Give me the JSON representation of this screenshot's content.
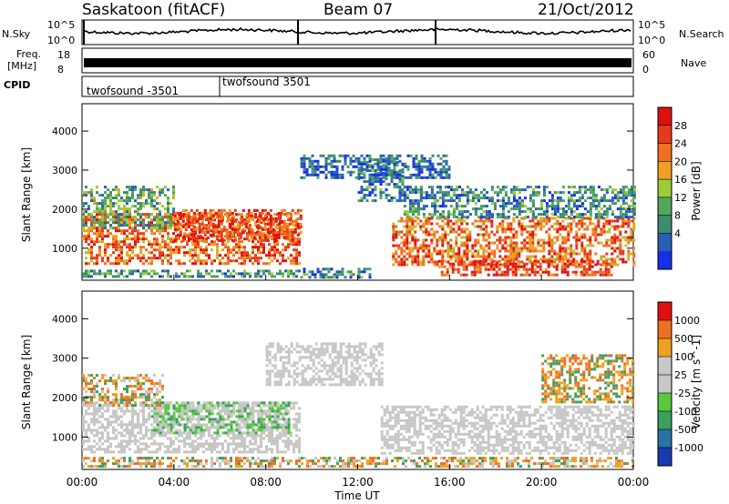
{
  "header": {
    "station": "Saskatoon (fitACF)",
    "beam": "Beam 07",
    "date": "21/Oct/2012"
  },
  "top_panels": {
    "nsky_label": "N.Sky",
    "nsky_ticks": [
      "10^5",
      "10^0"
    ],
    "nsearch_label": "N.Search",
    "nsearch_ticks": [
      "10^5",
      "10^0"
    ],
    "freq_label": "Freq.",
    "freq_unit": "[MHz]",
    "freq_ticks": [
      "18",
      "8"
    ],
    "nave_label": "Nave",
    "nave_ticks": [
      "60",
      "0"
    ],
    "cpid_label": "CPID",
    "cpid_entries": [
      {
        "text": "twofsound -3501",
        "from_hour": 0
      },
      {
        "text": "twofsound 3501",
        "from_hour": 6
      }
    ]
  },
  "chart_data": [
    {
      "type": "heatmap",
      "title": "",
      "xlabel": "Time UT",
      "ylabel": "Slant Range [km]",
      "xlim": [
        0,
        24
      ],
      "ylim": [
        180,
        4700
      ],
      "xticks": [
        "00:00",
        "04:00",
        "08:00",
        "12:00",
        "16:00",
        "20:00",
        "00:00"
      ],
      "yticks": [
        1000,
        2000,
        3000,
        4000
      ],
      "colorbar": {
        "label": "Power [dB]",
        "ticks": [
          4,
          8,
          12,
          16,
          20,
          24,
          28
        ],
        "colors": [
          "#1530e8",
          "#2860b8",
          "#3c8c6e",
          "#52a85a",
          "#9ccc38",
          "#f0a020",
          "#f07020",
          "#e83a1a",
          "#e01010"
        ]
      },
      "regions": [
        {
          "t0": 0.0,
          "t1": 9.5,
          "r0": 600,
          "r1": 1900,
          "level": 24
        },
        {
          "t0": 0.0,
          "t1": 4.0,
          "r0": 1500,
          "r1": 2600,
          "level": 12
        },
        {
          "t0": 4.0,
          "t1": 9.5,
          "r0": 1200,
          "r1": 2000,
          "level": 26
        },
        {
          "t0": 0.0,
          "t1": 9.5,
          "r0": 250,
          "r1": 450,
          "level": 10
        },
        {
          "t0": 9.5,
          "t1": 12.5,
          "r0": 250,
          "r1": 500,
          "level": 8
        },
        {
          "t0": 12.0,
          "t1": 14.0,
          "r0": 2200,
          "r1": 3300,
          "level": 8
        },
        {
          "t0": 13.5,
          "t1": 24.0,
          "r0": 600,
          "r1": 1800,
          "level": 24
        },
        {
          "t0": 15.5,
          "t1": 23.0,
          "r0": 350,
          "r1": 700,
          "level": 27
        },
        {
          "t0": 14.0,
          "t1": 24.0,
          "r0": 1800,
          "r1": 2600,
          "level": 9
        },
        {
          "t0": 9.5,
          "t1": 16.0,
          "r0": 2800,
          "r1": 3400,
          "level": 6
        }
      ]
    },
    {
      "type": "heatmap",
      "title": "",
      "xlabel": "Time UT",
      "ylabel": "Slant Range [km]",
      "xlim": [
        0,
        24
      ],
      "ylim": [
        180,
        4700
      ],
      "xticks": [
        "00:00",
        "04:00",
        "08:00",
        "12:00",
        "16:00",
        "20:00",
        "00:00"
      ],
      "yticks": [
        1000,
        2000,
        3000,
        4000
      ],
      "colorbar": {
        "label": "Velocity [m s^-1]",
        "ticks": [
          "1000",
          "500",
          "100",
          "25",
          "-25",
          "-100",
          "-500",
          "-1000"
        ],
        "colors": [
          "#1a3ab0",
          "#2a72a8",
          "#3ca060",
          "#5ac83a",
          "#c8c8c8",
          "#c8c8c8",
          "#f0a020",
          "#f07020",
          "#e01010"
        ]
      },
      "regions": [
        {
          "t0": 0.0,
          "t1": 9.5,
          "r0": 600,
          "r1": 1900,
          "level": "grey"
        },
        {
          "t0": 3.0,
          "t1": 9.0,
          "r0": 1100,
          "r1": 1900,
          "level": "green"
        },
        {
          "t0": 0.0,
          "t1": 3.5,
          "r0": 1800,
          "r1": 2600,
          "level": "mixed"
        },
        {
          "t0": 8.0,
          "t1": 13.0,
          "r0": 2300,
          "r1": 3400,
          "level": "grey"
        },
        {
          "t0": 13.0,
          "t1": 24.0,
          "r0": 600,
          "r1": 1800,
          "level": "grey"
        },
        {
          "t0": 0.0,
          "t1": 24.0,
          "r0": 250,
          "r1": 500,
          "level": "mixed"
        },
        {
          "t0": 20.0,
          "t1": 24.0,
          "r0": 1900,
          "r1": 3100,
          "level": "orange"
        }
      ]
    }
  ]
}
